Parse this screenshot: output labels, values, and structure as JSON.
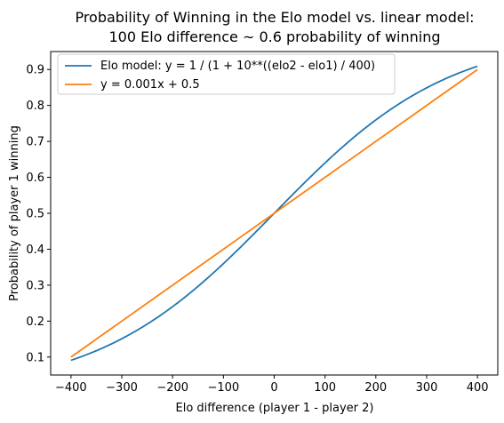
{
  "chart_data": {
    "type": "line",
    "title": "Probability of Winning in the Elo model vs. linear model:",
    "subtitle": "100 Elo difference ~ 0.6 probability of winning",
    "xlabel": "Elo difference (player 1 - player 2)",
    "ylabel": "Probability of player 1 winning",
    "xlim": [
      -440,
      440
    ],
    "ylim": [
      0.05,
      0.95
    ],
    "xticks": [
      -400,
      -300,
      -200,
      -100,
      0,
      100,
      200,
      300,
      400
    ],
    "yticks": [
      0.1,
      0.2,
      0.3,
      0.4,
      0.5,
      0.6,
      0.7,
      0.8,
      0.9
    ],
    "grid": false,
    "legend_position": "top-left",
    "series": [
      {
        "name": "Elo model: y = 1 / (1 + 10**((elo2 - elo1) / 400)",
        "color": "#1f77b4",
        "x": [
          -400,
          -350,
          -300,
          -250,
          -200,
          -150,
          -100,
          -50,
          0,
          50,
          100,
          150,
          200,
          250,
          300,
          350,
          400
        ],
        "y": [
          0.0909,
          0.1174,
          0.151,
          0.1924,
          0.2403,
          0.2966,
          0.3599,
          0.4283,
          0.5,
          0.5717,
          0.6401,
          0.7034,
          0.7597,
          0.8076,
          0.849,
          0.8826,
          0.9091
        ]
      },
      {
        "name": "y = 0.001x + 0.5",
        "color": "#ff7f0e",
        "x": [
          -400,
          400
        ],
        "y": [
          0.1,
          0.9
        ]
      }
    ]
  }
}
